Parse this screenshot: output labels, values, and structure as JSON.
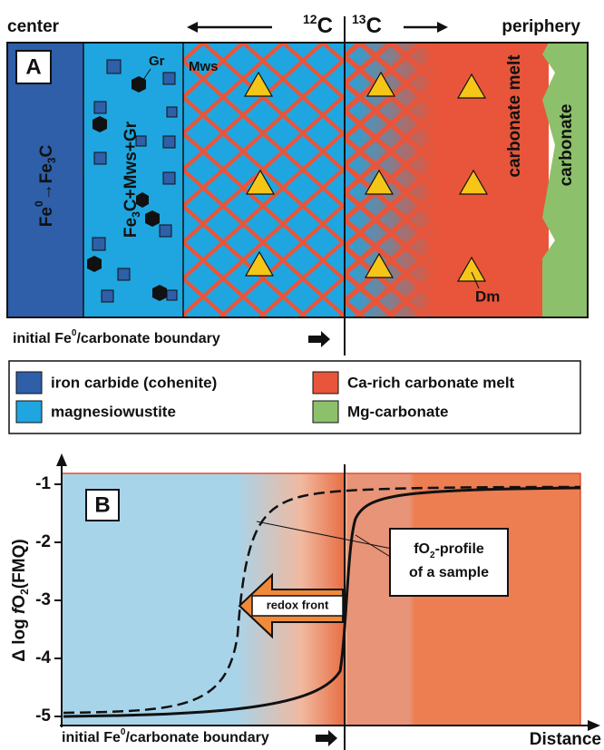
{
  "panel_a": {
    "label": "A",
    "top_left": "center",
    "top_right": "periphery",
    "isotope_left": {
      "mass": "12",
      "element": "C"
    },
    "isotope_right": {
      "mass": "13",
      "element": "C"
    },
    "reaction": [
      "Fe",
      "0",
      "→",
      "Fe",
      "3",
      "C"
    ],
    "assemblage": [
      "Fe",
      "3",
      "C+Mws+Gr"
    ],
    "melt": "carbonate melt",
    "carbonate": "carbonate",
    "gr": "Gr",
    "mws": "Mws",
    "dm": "Dm",
    "boundary": [
      "initial  Fe",
      "0",
      "/carbonate boundary"
    ]
  },
  "legend": [
    {
      "label": "iron carbide (cohenite)",
      "color": "#2e5fa8"
    },
    {
      "label": "magnesiowustite",
      "color": "#1fa6e0"
    },
    {
      "label": "Ca-rich carbonate melt",
      "color": "#e8553a"
    },
    {
      "label": "Mg-carbonate",
      "color": "#8dc06a"
    }
  ],
  "panel_b": {
    "label": "B",
    "y_label": [
      "Δ  log  ",
      "f",
      "O",
      "2",
      "(FMQ)"
    ],
    "ylim": [
      -5.15,
      -0.8
    ],
    "yticks": [
      -1,
      -2,
      -3,
      -4,
      -5
    ],
    "x_label": "Distance",
    "redox_front": "redox front",
    "profile_label": [
      "fO",
      "2",
      "-profile",
      "of a sample"
    ],
    "boundary": [
      "initial  Fe",
      "0",
      "/carbonate boundary"
    ]
  }
}
